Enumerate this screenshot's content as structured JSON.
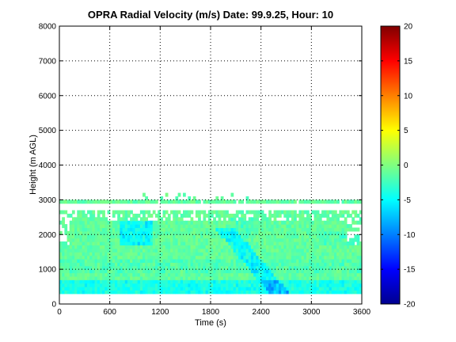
{
  "chart_data": {
    "type": "heatmap",
    "title": "OPRA Radial Velocity (m/s)  Date: 99.9.25, Hour: 10",
    "xlabel": "Time (s)",
    "ylabel": "Height (m AGL)",
    "xlim": [
      0,
      3600
    ],
    "ylim": [
      0,
      8000
    ],
    "xticks": [
      "0",
      "600",
      "1200",
      "1800",
      "2400",
      "3000",
      "3600"
    ],
    "yticks": [
      "0",
      "1000",
      "2000",
      "3000",
      "4000",
      "5000",
      "6000",
      "7000",
      "8000"
    ],
    "grid": true,
    "colorbar": {
      "clim": [
        -20,
        20
      ],
      "ticks": [
        "20",
        "15",
        "10",
        "5",
        "0",
        "-5",
        "-10",
        "-15",
        "-20"
      ],
      "colormap": "jet"
    },
    "data_summary": {
      "velocity_range_observed": [
        -7,
        1
      ],
      "max_echo_height": 3150,
      "min_echo_height": 300,
      "description": "Echoes from 300 to 3000 m AGL with a data gap near 2700-2900 m; mostly -2 to 0 m/s with stronger -5 to -7 m/s features near 800-1000 s (1700-2300 m) and a slanted band near 2000-2600 s."
    }
  }
}
